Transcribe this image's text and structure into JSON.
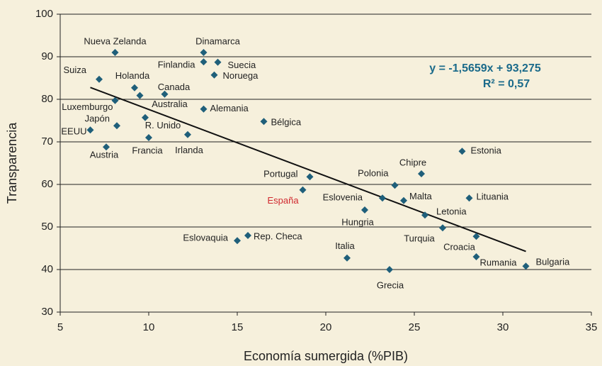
{
  "chart_data": {
    "type": "scatter",
    "x_label": "Economía sumergida (%PIB)",
    "y_label": "Transparencia",
    "annotations": [
      "y = -1,5659x + 93,275",
      "R² = 0,57"
    ],
    "labels": [
      "Nueva Zelanda",
      "Dinamarca",
      "Finlandia",
      "Suecia",
      "Noruega",
      "Suiza",
      "Holanda",
      "Canada",
      "Australia",
      "Alemania",
      "Bélgica",
      "Japón",
      "EEUU",
      "Luxemburgo",
      "R. Unido",
      "Francia",
      "Irlanda",
      "Austria",
      "Estonia",
      "Chipre",
      "Portugal",
      "Polonia",
      "España",
      "Lituania",
      "Eslovenia",
      "Malta",
      "Hungria",
      "Letonia",
      "Turquia",
      "Croacia",
      "Rumania",
      "Bulgaria",
      "Grecia",
      "Italia",
      "Eslovaquia",
      "Rep. Checa"
    ],
    "x": [
      8.1,
      13.1,
      13.1,
      13.9,
      13.7,
      7.2,
      9.2,
      10.9,
      9.5,
      13.1,
      16.5,
      8.2,
      6.7,
      8.1,
      9.8,
      10.0,
      12.2,
      7.6,
      27.7,
      25.4,
      19.1,
      23.9,
      18.7,
      28.1,
      23.2,
      24.4,
      22.2,
      25.6,
      26.6,
      28.5,
      28.5,
      31.3,
      23.6,
      21.2,
      15.0,
      15.6
    ],
    "y": [
      91,
      91,
      88.8,
      88.7,
      85.7,
      84.7,
      82.7,
      81.2,
      80.9,
      77.7,
      74.8,
      73.8,
      72.8,
      79.7,
      75.7,
      71.0,
      71.7,
      68.8,
      67.8,
      62.5,
      61.8,
      59.8,
      58.7,
      56.8,
      56.8,
      56.2,
      54.0,
      52.8,
      49.8,
      47.8,
      43,
      40.8,
      40,
      42.7,
      46.8,
      48
    ],
    "color": "#1f5f7a",
    "label_colors": [
      "#222",
      "#222",
      "#222",
      "#222",
      "#222",
      "#222",
      "#222",
      "#222",
      "#222",
      "#222",
      "#222",
      "#222",
      "#222",
      "#222",
      "#222",
      "#222",
      "#222",
      "#222",
      "#222",
      "#222",
      "#222",
      "#222",
      "#d0282e",
      "#222",
      "#222",
      "#222",
      "#222",
      "#222",
      "#222",
      "#222",
      "#222",
      "#222",
      "#222",
      "#222",
      "#222",
      "#222"
    ],
    "trendline": {
      "slope": -1.5659,
      "intercept": 93.275,
      "x": [
        6.7,
        31.3
      ],
      "color": "#111"
    },
    "xlim": [
      5,
      35
    ],
    "xticks": [
      5,
      10,
      15,
      20,
      25,
      30,
      35
    ],
    "ylim": [
      30,
      100
    ],
    "yticks": [
      30,
      40,
      50,
      60,
      70,
      80,
      90,
      100
    ],
    "grid": true
  }
}
